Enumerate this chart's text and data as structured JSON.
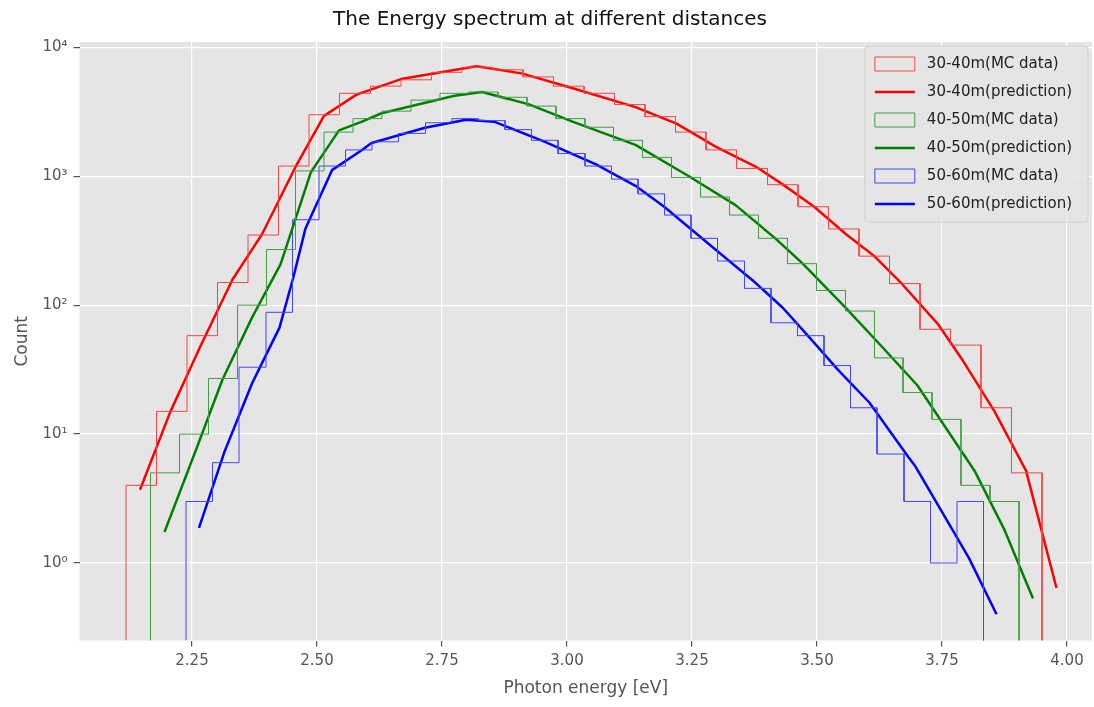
{
  "chart_data": {
    "type": "histogram",
    "title": "The Energy spectrum at different distances",
    "xlabel": "Photon energy [eV]",
    "ylabel": "Count",
    "log": "y",
    "grid": true,
    "legend": "top right",
    "xlim": [
      2.025,
      4.05
    ],
    "xticks": [
      2.25,
      {
        "value": 2.5,
        "label": "2.50"
      },
      2.75,
      {
        "value": 3,
        "label": "3.00"
      },
      3.25,
      {
        "value": 3.5,
        "label": "3.50"
      },
      3.75,
      {
        "value": 4,
        "label": "4.00"
      }
    ],
    "ylim": [
      0.25,
      11000
    ],
    "yticks": [
      {
        "value": 1,
        "label": "10⁰"
      },
      {
        "value": 10,
        "label": "10¹"
      },
      {
        "value": 100,
        "label": "10²"
      },
      {
        "value": 1000,
        "label": "10³"
      },
      {
        "value": 10000,
        "label": "10⁴"
      }
    ],
    "series": [
      {
        "name": "30-40m(MC data)",
        "type": "histogram",
        "color": "#f74545",
        "bins": [
          2.118,
          2.179,
          2.24,
          2.301,
          2.362,
          2.423,
          2.484,
          2.545,
          2.607,
          2.668,
          2.729,
          2.79,
          2.851,
          2.912,
          2.973,
          3.034,
          3.095,
          3.156,
          3.217,
          3.278,
          3.339,
          3.401,
          3.462,
          3.523,
          3.584,
          3.645,
          3.706,
          3.767,
          3.828,
          3.889,
          3.95
        ],
        "values": [
          4,
          15,
          58,
          150,
          350,
          1200,
          3000,
          4400,
          5000,
          5600,
          6400,
          7000,
          6700,
          5900,
          5000,
          4400,
          3600,
          2900,
          2200,
          1600,
          1150,
          860,
          580,
          390,
          240,
          147,
          65,
          49,
          16,
          5
        ]
      },
      {
        "name": "30-40m(prediction)",
        "type": "line",
        "color": "#ff0000",
        "x": [
          2.146,
          2.207,
          2.268,
          2.331,
          2.39,
          2.457,
          2.514,
          2.579,
          2.668,
          2.819,
          2.909,
          3.003,
          3.137,
          3.219,
          3.298,
          3.377,
          3.432,
          3.495,
          3.558,
          3.613,
          3.67,
          3.741,
          3.792,
          3.855,
          3.918,
          3.979
        ],
        "values": [
          3.7,
          15,
          49,
          158,
          355,
          1180,
          2940,
          4300,
          5670,
          7130,
          6280,
          4930,
          3440,
          2560,
          1690,
          1190,
          861,
          577,
          355,
          243,
          146,
          72,
          37,
          15,
          5.2,
          0.64
        ]
      },
      {
        "name": "40-50m(MC data)",
        "type": "histogram",
        "color": "#459e45",
        "bins": [
          2.167,
          2.225,
          2.283,
          2.341,
          2.399,
          2.457,
          2.514,
          2.572,
          2.63,
          2.688,
          2.746,
          2.804,
          2.862,
          2.92,
          2.978,
          3.036,
          3.093,
          3.151,
          3.209,
          3.267,
          3.325,
          3.383,
          3.441,
          3.499,
          3.557,
          3.615,
          3.672,
          3.73,
          3.788,
          3.846,
          3.904
        ],
        "values": [
          5,
          10,
          27,
          100,
          270,
          1100,
          2200,
          2800,
          3200,
          3900,
          4400,
          4500,
          4100,
          3500,
          2800,
          2400,
          1900,
          1400,
          980,
          690,
          500,
          330,
          210,
          130,
          90,
          39,
          21,
          13,
          4,
          3
        ]
      },
      {
        "name": "40-50m(prediction)",
        "type": "line",
        "color": "#008000",
        "x": [
          2.195,
          2.26,
          2.311,
          2.37,
          2.427,
          2.488,
          2.544,
          2.59,
          2.629,
          2.775,
          2.83,
          2.924,
          3.011,
          3.137,
          3.243,
          3.337,
          3.416,
          3.471,
          3.558,
          3.629,
          3.701,
          3.815,
          3.874,
          3.932
        ],
        "values": [
          1.74,
          7.9,
          26.5,
          80,
          207,
          1080,
          2270,
          2650,
          3080,
          4210,
          4510,
          3610,
          2650,
          1750,
          1005,
          597,
          331,
          211,
          95,
          48,
          23.8,
          5.2,
          1.84,
          0.53
        ]
      },
      {
        "name": "50-60m(MC data)",
        "type": "histogram",
        "color": "#4545f7",
        "bins": [
          2.238,
          2.291,
          2.344,
          2.398,
          2.451,
          2.504,
          2.557,
          2.61,
          2.663,
          2.717,
          2.77,
          2.823,
          2.876,
          2.929,
          2.982,
          3.036,
          3.089,
          3.142,
          3.195,
          3.248,
          3.301,
          3.355,
          3.408,
          3.461,
          3.514,
          3.567,
          3.62,
          3.674,
          3.727,
          3.78,
          3.833
        ],
        "values": [
          3,
          6,
          33,
          88,
          460,
          1200,
          1600,
          1850,
          2150,
          2600,
          2800,
          2700,
          2300,
          1900,
          1500,
          1200,
          950,
          730,
          500,
          330,
          220,
          135,
          73,
          58,
          34,
          16,
          7,
          3,
          1,
          3
        ]
      },
      {
        "name": "50-60m(prediction)",
        "type": "line",
        "color": "#0000ff",
        "x": [
          2.264,
          2.315,
          2.37,
          2.425,
          2.453,
          2.477,
          2.53,
          2.59,
          2.609,
          2.716,
          2.798,
          2.854,
          2.956,
          3.058,
          3.137,
          3.195,
          3.274,
          3.377,
          3.432,
          3.487,
          3.542,
          3.605,
          3.683,
          3.697,
          3.804,
          3.859
        ],
        "values": [
          1.87,
          7.3,
          24.7,
          67,
          166,
          394,
          1115,
          1600,
          1810,
          2380,
          2740,
          2650,
          1850,
          1236,
          843,
          577,
          320,
          149,
          95,
          55,
          31.5,
          17.5,
          6.6,
          5.6,
          1.09,
          0.4
        ]
      }
    ]
  }
}
